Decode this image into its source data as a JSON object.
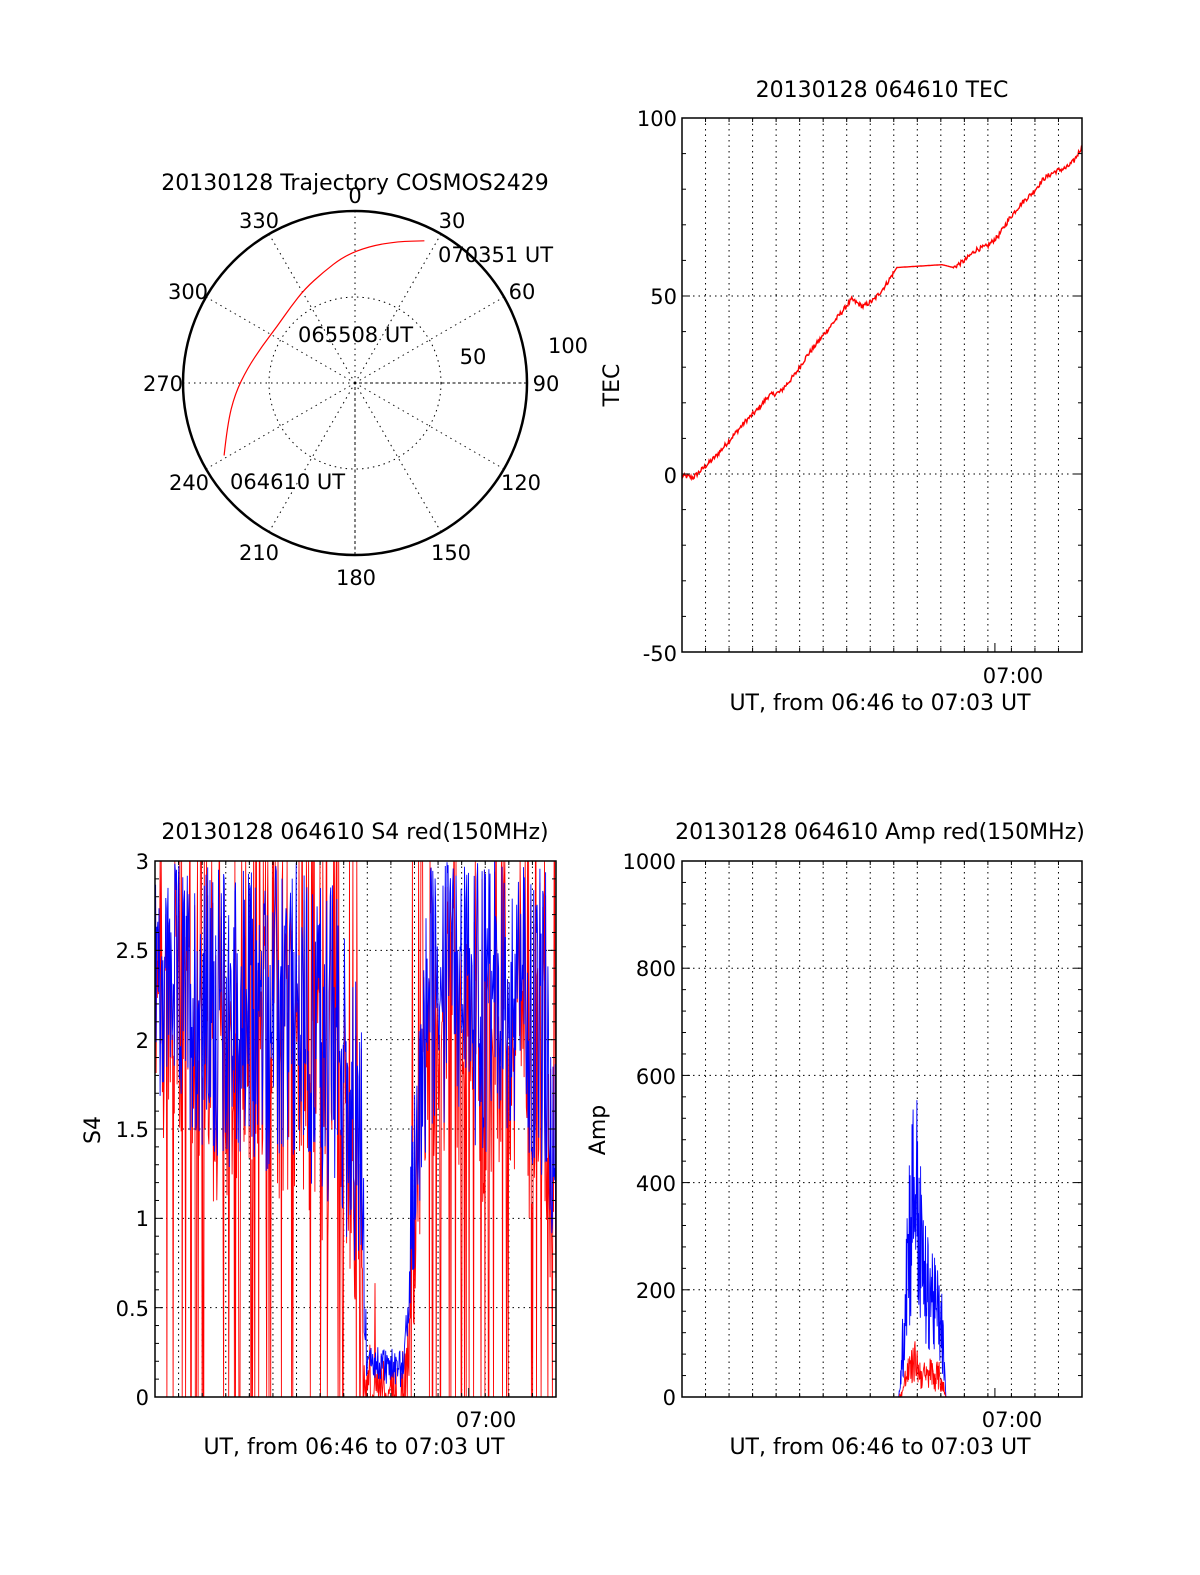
{
  "chart_data": [
    {
      "type": "polar",
      "title": "20130128 Trajectory COSMOS2429",
      "azimuth_labels": [
        "0",
        "30",
        "60",
        "90",
        "120",
        "150",
        "180",
        "210",
        "240",
        "270",
        "300",
        "330"
      ],
      "elevation_labels": [
        "50",
        "100"
      ],
      "colors": {
        "trajectory": "#ff0000"
      },
      "trajectory": {
        "points": [
          {
            "az": 241,
            "zen": 87
          },
          {
            "az": 252,
            "zen": 78
          },
          {
            "az": 265,
            "zen": 70
          },
          {
            "az": 278,
            "zen": 63
          },
          {
            "az": 292,
            "zen": 58
          },
          {
            "az": 306,
            "zen": 56
          },
          {
            "az": 320,
            "zen": 58
          },
          {
            "az": 332,
            "zen": 62
          },
          {
            "az": 344,
            "zen": 67
          },
          {
            "az": 355,
            "zen": 74
          },
          {
            "az": 6,
            "zen": 80
          },
          {
            "az": 17,
            "zen": 86
          },
          {
            "az": 26,
            "zen": 92
          }
        ],
        "labels": [
          {
            "text": "064610 UT",
            "at": "start"
          },
          {
            "text": "065508 UT",
            "at": "middle"
          },
          {
            "text": "070351 UT",
            "at": "end"
          }
        ]
      }
    },
    {
      "type": "line",
      "title": "20130128 064610 TEC",
      "xlabel": "UT, from 06:46 to 07:03 UT",
      "ylabel": "TEC",
      "xlim": [
        0,
        1061
      ],
      "ylim": [
        -50,
        100
      ],
      "yticks": [
        "100",
        "50",
        "0",
        "-50"
      ],
      "xtick": {
        "label": "07:00",
        "sec": 830
      },
      "colors": {
        "tec": "#ff0000"
      },
      "series": [
        {
          "x": [
            0,
            30,
            60,
            90,
            130,
            170,
            200,
            230,
            260,
            300,
            330,
            360,
            390,
            420,
            450,
            480,
            510,
            540,
            570,
            600,
            630,
            660,
            690,
            720,
            750,
            780,
            810,
            840,
            870,
            900,
            930,
            960,
            990,
            1020,
            1040,
            1061
          ],
          "y": [
            -0.5,
            -1,
            2,
            5,
            10,
            15,
            18,
            22,
            23,
            28,
            33,
            37,
            41,
            45,
            49,
            47,
            49,
            53,
            58,
            58.2,
            58.4,
            58.6,
            58.8,
            58,
            60,
            63,
            64,
            67,
            72,
            76,
            79,
            83,
            85,
            86,
            88,
            92
          ]
        }
      ]
    },
    {
      "type": "line",
      "title": "20130128 064610 S4 red(150MHz)",
      "xlabel": "UT, from 06:46 to 07:03 UT",
      "ylabel": "S4",
      "xlim": [
        0,
        1061
      ],
      "ylim": [
        0,
        3
      ],
      "yticks": [
        "3",
        "2.5",
        "2",
        "1.5",
        "1",
        "0.5",
        "0"
      ],
      "xtick": {
        "label": "07:00",
        "sec": 830
      },
      "colors": {
        "red": "#ff0000",
        "blue": "#0000ff"
      },
      "envelope": {
        "x": [
          0,
          60,
          120,
          180,
          240,
          300,
          360,
          420,
          480,
          520,
          545,
          560,
          600,
          620,
          640,
          660,
          680,
          700,
          720,
          760,
          800,
          840,
          880,
          920,
          960,
          1000,
          1040,
          1061
        ],
        "low": [
          1.7,
          1.6,
          1.4,
          1.3,
          1.2,
          1.2,
          1.2,
          1.1,
          1.0,
          0.8,
          0.6,
          0.08,
          0.08,
          0.06,
          0.05,
          0.06,
          0.6,
          1.0,
          1.3,
          1.4,
          1.6,
          1.4,
          1.3,
          1.4,
          1.4,
          1.3,
          0.9,
          0.5
        ],
        "high": [
          3,
          3,
          3,
          3,
          3,
          3,
          3,
          3,
          2.9,
          2.5,
          2.2,
          0.3,
          0.3,
          0.28,
          0.25,
          0.28,
          1.6,
          2.2,
          3,
          3,
          3,
          3,
          3,
          3,
          3,
          3,
          3,
          2.4
        ]
      }
    },
    {
      "type": "line",
      "title": "20130128 064610 Amp red(150MHz)",
      "xlabel": "UT, from 06:46 to 07:03 UT",
      "ylabel": "Amp",
      "xlim": [
        0,
        1061
      ],
      "ylim": [
        0,
        1000
      ],
      "yticks": [
        "1000",
        "800",
        "600",
        "400",
        "200",
        "0"
      ],
      "xtick": {
        "label": "07:00",
        "sec": 830
      },
      "colors": {
        "red": "#ff0000",
        "blue": "#0000ff"
      },
      "envelope": {
        "x": [
          0,
          575,
          585,
          595,
          610,
          620,
          630,
          640,
          650,
          660,
          670,
          680,
          690,
          700,
          1061
        ],
        "blue_high": [
          0,
          0,
          150,
          420,
          560,
          620,
          480,
          360,
          300,
          330,
          260,
          240,
          200,
          0,
          0
        ],
        "blue_low": [
          0,
          0,
          20,
          80,
          150,
          200,
          120,
          100,
          80,
          90,
          70,
          60,
          40,
          0,
          0
        ],
        "red_high": [
          0,
          0,
          20,
          70,
          90,
          110,
          75,
          70,
          60,
          80,
          65,
          70,
          50,
          0,
          0
        ],
        "red_low": [
          0,
          0,
          0,
          10,
          20,
          30,
          15,
          10,
          12,
          15,
          10,
          10,
          5,
          0,
          0
        ]
      }
    }
  ]
}
